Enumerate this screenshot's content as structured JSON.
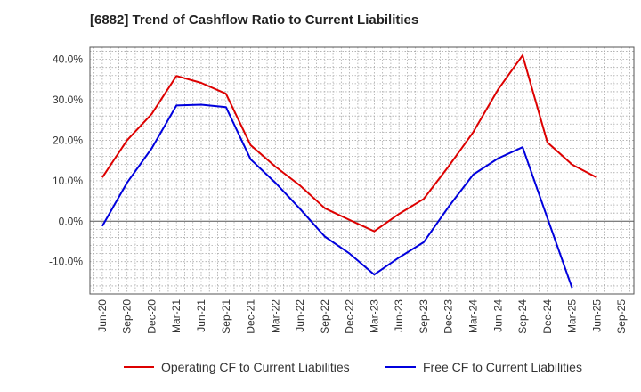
{
  "title": "[6882]  Trend of Cashflow Ratio to Current Liabilities",
  "chart_data": {
    "type": "line",
    "title": "[6882]  Trend of Cashflow Ratio to Current Liabilities",
    "xlabel": "",
    "ylabel": "",
    "ylim": [
      -18,
      43
    ],
    "y_ticks": [
      -10,
      0,
      10,
      20,
      30,
      40
    ],
    "y_tick_labels": [
      "-10.0%",
      "0.0%",
      "10.0%",
      "20.0%",
      "30.0%",
      "40.0%"
    ],
    "categories": [
      "Jun-20",
      "Sep-20",
      "Dec-20",
      "Mar-21",
      "Jun-21",
      "Sep-21",
      "Dec-21",
      "Mar-22",
      "Jun-22",
      "Sep-22",
      "Dec-22",
      "Mar-23",
      "Jun-23",
      "Sep-23",
      "Dec-23",
      "Mar-24",
      "Jun-24",
      "Sep-24",
      "Dec-24",
      "Mar-25",
      "Jun-25",
      "Sep-25"
    ],
    "grid": true,
    "legend_position": "bottom",
    "series": [
      {
        "name": "Operating CF to Current Liabilities",
        "color": "#dd0000",
        "values": [
          10.8,
          20.0,
          26.5,
          35.9,
          34.2,
          31.5,
          18.8,
          13.5,
          8.8,
          3.2,
          0.3,
          -2.5,
          1.8,
          5.5,
          13.5,
          22.0,
          32.5,
          41.0,
          19.5,
          14.0,
          10.8,
          null
        ]
      },
      {
        "name": "Free CF to Current Liabilities",
        "color": "#0000dd",
        "values": [
          -1.2,
          9.5,
          18.0,
          28.6,
          28.8,
          28.2,
          15.3,
          9.5,
          3.0,
          -3.8,
          -8.0,
          -13.2,
          -9.0,
          -5.2,
          3.5,
          11.5,
          15.5,
          18.3,
          0.8,
          -16.5,
          null,
          null
        ]
      }
    ]
  }
}
